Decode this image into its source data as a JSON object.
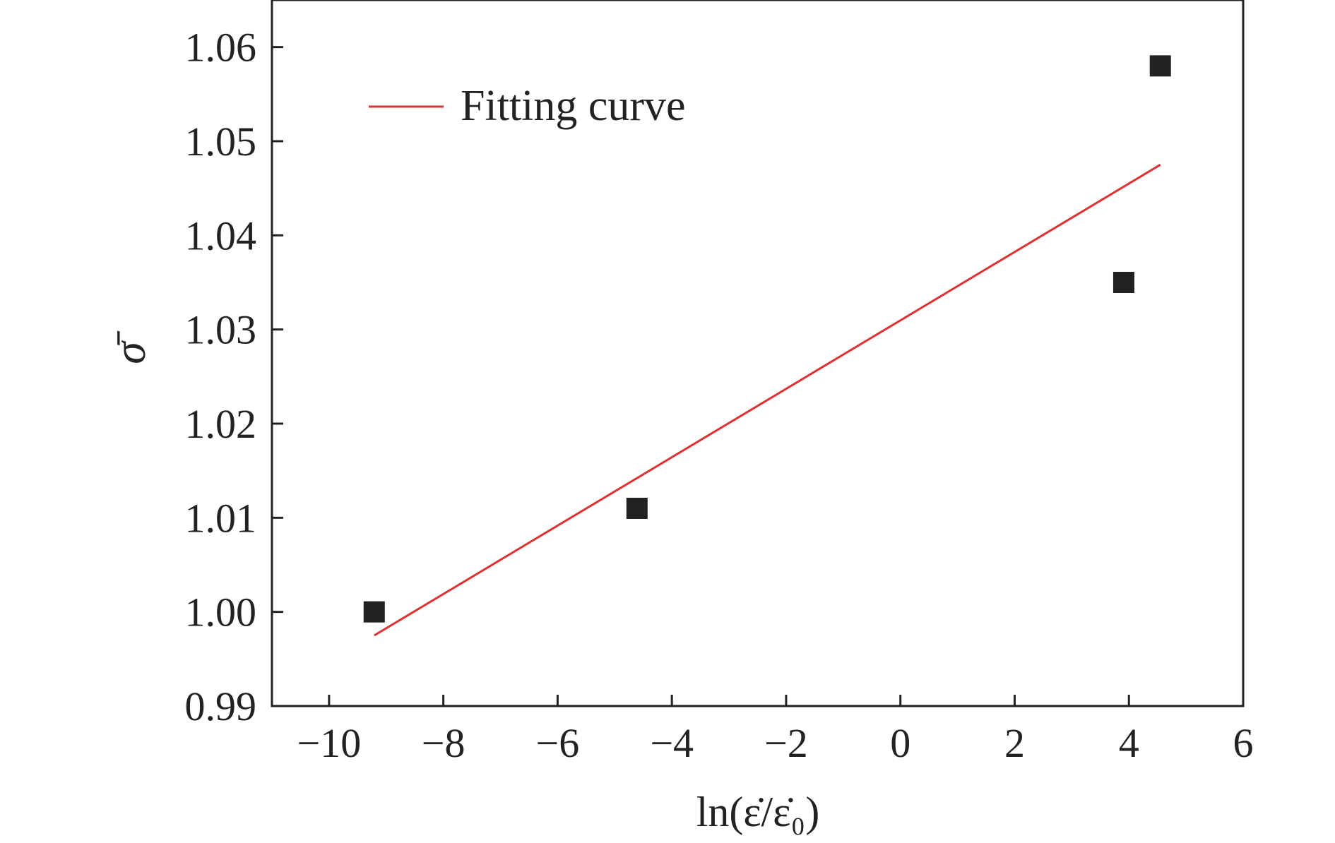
{
  "chart_data": {
    "type": "scatter",
    "xlabel": "ln(ε̇/ε̇₀)",
    "ylabel": "σ̄",
    "xlim": [
      -11,
      6
    ],
    "ylim": [
      0.99,
      1.065
    ],
    "xticks": [
      -10,
      -8,
      -6,
      -4,
      -2,
      0,
      2,
      4,
      6
    ],
    "xtick_labels": [
      "−10",
      "−8",
      "−6",
      "−4",
      "−2",
      "0",
      "2",
      "4",
      "6"
    ],
    "yticks": [
      0.99,
      1.0,
      1.01,
      1.02,
      1.03,
      1.04,
      1.05,
      1.06
    ],
    "ytick_labels": [
      "0.99",
      "1.00",
      "1.01",
      "1.02",
      "1.03",
      "1.04",
      "1.05",
      "1.06"
    ],
    "grid": false,
    "legend_position": "top-left",
    "series": [
      {
        "kind": "scatter",
        "marker": "square",
        "color": "#222222",
        "points": [
          {
            "x": -9.21,
            "y": 1.0
          },
          {
            "x": -4.61,
            "y": 1.011
          },
          {
            "x": 3.91,
            "y": 1.035
          },
          {
            "x": 4.55,
            "y": 1.058
          }
        ]
      },
      {
        "name": "Fitting curve",
        "kind": "line",
        "color": "#e03131",
        "points": [
          {
            "x": -9.21,
            "y": 0.9975
          },
          {
            "x": 4.55,
            "y": 1.0475
          }
        ]
      }
    ]
  }
}
